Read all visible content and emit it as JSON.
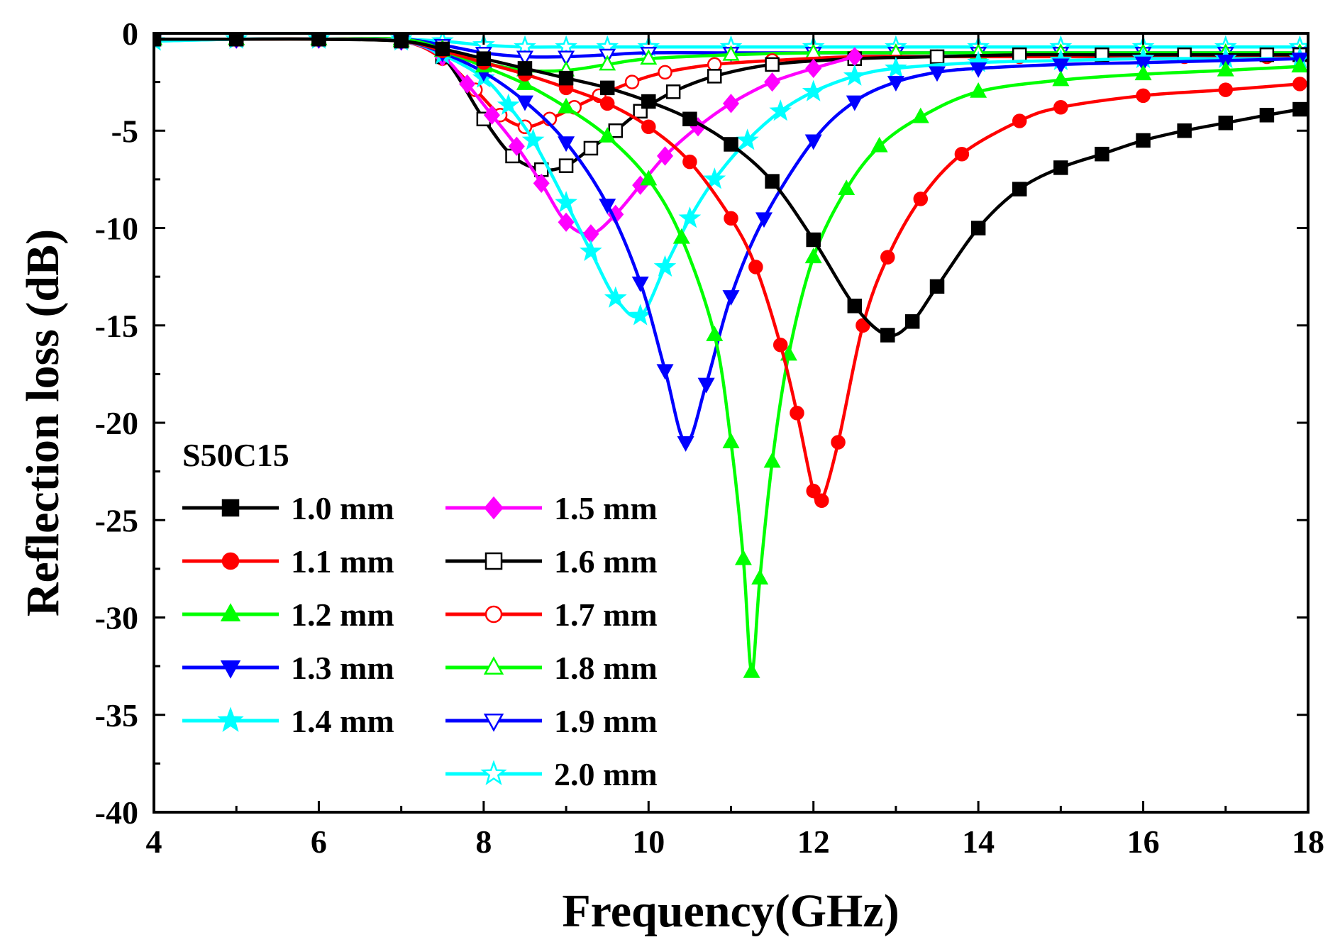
{
  "chart_data": {
    "type": "line",
    "title": "",
    "xlabel": "Frequency(GHz)",
    "ylabel": "Reflection loss (dB)",
    "xlim": [
      4,
      18
    ],
    "ylim": [
      -40,
      0
    ],
    "xticks": [
      4,
      6,
      8,
      10,
      12,
      14,
      16,
      18
    ],
    "yticks": [
      0,
      -5,
      -10,
      -15,
      -20,
      -25,
      -30,
      -35,
      -40
    ],
    "annotation": "S50C15",
    "grid": false,
    "legend_position": "bottom-left",
    "series": [
      {
        "name": "1.0 mm",
        "color": "#000000",
        "marker": "square",
        "filled": true,
        "x": [
          4,
          5,
          6,
          7,
          7.5,
          8,
          8.5,
          9,
          9.5,
          10,
          10.5,
          11,
          11.5,
          12,
          12.5,
          12.9,
          13.2,
          13.5,
          14,
          14.5,
          15,
          15.5,
          16,
          16.5,
          17,
          17.5,
          17.9
        ],
        "y": [
          -0.3,
          -0.3,
          -0.3,
          -0.4,
          -0.8,
          -1.3,
          -1.8,
          -2.3,
          -2.8,
          -3.5,
          -4.4,
          -5.7,
          -7.6,
          -10.6,
          -14.0,
          -15.5,
          -14.8,
          -13.0,
          -10.0,
          -8.0,
          -6.9,
          -6.2,
          -5.5,
          -5.0,
          -4.6,
          -4.2,
          -3.9
        ]
      },
      {
        "name": "1.1 mm",
        "color": "#ff0000",
        "marker": "circle",
        "filled": true,
        "x": [
          4,
          5,
          6,
          7,
          7.5,
          8,
          8.5,
          9,
          9.5,
          10,
          10.5,
          11,
          11.3,
          11.6,
          11.8,
          12.0,
          12.1,
          12.3,
          12.6,
          12.9,
          13.3,
          13.8,
          14.5,
          15,
          16,
          17,
          17.9
        ],
        "y": [
          -0.3,
          -0.3,
          -0.3,
          -0.4,
          -0.9,
          -1.5,
          -2.1,
          -2.8,
          -3.6,
          -4.8,
          -6.6,
          -9.5,
          -12.0,
          -16.0,
          -19.5,
          -23.5,
          -24.0,
          -21.0,
          -15.0,
          -11.5,
          -8.5,
          -6.2,
          -4.5,
          -3.8,
          -3.2,
          -2.9,
          -2.6
        ]
      },
      {
        "name": "1.2 mm",
        "color": "#00ff00",
        "marker": "triangle-up",
        "filled": true,
        "x": [
          4,
          5,
          6,
          7,
          7.5,
          8,
          8.5,
          9,
          9.5,
          10,
          10.4,
          10.8,
          11.0,
          11.15,
          11.25,
          11.35,
          11.5,
          11.7,
          12.0,
          12.4,
          12.8,
          13.3,
          14,
          15,
          16,
          17,
          17.9
        ],
        "y": [
          -0.3,
          -0.3,
          -0.3,
          -0.4,
          -0.9,
          -1.7,
          -2.6,
          -3.8,
          -5.3,
          -7.5,
          -10.5,
          -15.5,
          -21.0,
          -27.0,
          -32.8,
          -28.0,
          -22.0,
          -16.5,
          -11.5,
          -8.0,
          -5.8,
          -4.3,
          -3.0,
          -2.4,
          -2.1,
          -1.9,
          -1.7
        ]
      },
      {
        "name": "1.3 mm",
        "color": "#0000ff",
        "marker": "triangle-down",
        "filled": true,
        "x": [
          4,
          5,
          6,
          7,
          7.5,
          8,
          8.5,
          9,
          9.5,
          9.9,
          10.2,
          10.45,
          10.7,
          11.0,
          11.4,
          12,
          12.5,
          13,
          13.5,
          14,
          15,
          16,
          17,
          17.9
        ],
        "y": [
          -0.3,
          -0.3,
          -0.3,
          -0.4,
          -1.0,
          -2.0,
          -3.5,
          -5.6,
          -8.8,
          -12.8,
          -17.3,
          -21.0,
          -18.0,
          -13.5,
          -9.5,
          -5.5,
          -3.5,
          -2.5,
          -2.0,
          -1.8,
          -1.6,
          -1.5,
          -1.4,
          -1.3
        ]
      },
      {
        "name": "1.4 mm",
        "color": "#00ffff",
        "marker": "star",
        "filled": true,
        "x": [
          4,
          5,
          6,
          7,
          7.5,
          8,
          8.3,
          8.6,
          9.0,
          9.3,
          9.6,
          9.9,
          10.2,
          10.5,
          10.8,
          11.2,
          11.6,
          12.0,
          12.5,
          13,
          14,
          15,
          16,
          17,
          17.9
        ],
        "y": [
          -0.4,
          -0.3,
          -0.3,
          -0.4,
          -1.1,
          -2.3,
          -3.7,
          -5.5,
          -8.7,
          -11.2,
          -13.6,
          -14.5,
          -12.0,
          -9.5,
          -7.5,
          -5.5,
          -4.0,
          -3.0,
          -2.2,
          -1.8,
          -1.5,
          -1.4,
          -1.3,
          -1.3,
          -1.3
        ]
      },
      {
        "name": "1.5 mm",
        "color": "#ff00ff",
        "marker": "diamond",
        "filled": true,
        "x": [
          4,
          5,
          6,
          7,
          7.5,
          7.8,
          8.1,
          8.4,
          8.7,
          9.0,
          9.3,
          9.6,
          9.9,
          10.2,
          10.6,
          11.0,
          11.5,
          12.0,
          12.5
        ],
        "y": [
          -0.3,
          -0.3,
          -0.3,
          -0.4,
          -1.2,
          -2.6,
          -4.2,
          -5.8,
          -7.7,
          -9.7,
          -10.3,
          -9.3,
          -7.8,
          -6.3,
          -4.8,
          -3.6,
          -2.5,
          -1.8,
          -1.2
        ]
      },
      {
        "name": "1.6 mm",
        "color": "#000000",
        "marker": "square",
        "filled": false,
        "x": [
          4,
          5,
          6,
          7,
          7.5,
          8.0,
          8.35,
          8.7,
          9.0,
          9.3,
          9.6,
          9.9,
          10.3,
          10.8,
          11.5,
          12.5,
          13.5,
          14.5,
          15.5,
          16.5,
          17.5,
          17.9
        ],
        "y": [
          -0.3,
          -0.3,
          -0.3,
          -0.4,
          -1.2,
          -4.4,
          -6.3,
          -7.0,
          -6.8,
          -5.9,
          -5.0,
          -4.0,
          -3.0,
          -2.2,
          -1.6,
          -1.3,
          -1.2,
          -1.1,
          -1.1,
          -1.1,
          -1.1,
          -1.1
        ]
      },
      {
        "name": "1.7 mm",
        "color": "#ff0000",
        "marker": "circle",
        "filled": false,
        "x": [
          4,
          5,
          6,
          7,
          7.5,
          7.9,
          8.2,
          8.5,
          8.8,
          9.1,
          9.4,
          9.8,
          10.2,
          10.8,
          11.5,
          12.5,
          13.5,
          14.5,
          15.5,
          16.5,
          17.5,
          17.9
        ],
        "y": [
          -0.3,
          -0.3,
          -0.3,
          -0.4,
          -1.3,
          -2.9,
          -4.2,
          -4.8,
          -4.4,
          -3.8,
          -3.2,
          -2.5,
          -2.0,
          -1.6,
          -1.4,
          -1.2,
          -1.2,
          -1.2,
          -1.2,
          -1.2,
          -1.2,
          -1.2
        ]
      },
      {
        "name": "1.8 mm",
        "color": "#00ff00",
        "marker": "triangle-up",
        "filled": false,
        "x": [
          4,
          5,
          6,
          7,
          7.5,
          8,
          8.5,
          9,
          9.5,
          10,
          11,
          12,
          13,
          14,
          15,
          16,
          17,
          17.9
        ],
        "y": [
          -0.3,
          -0.3,
          -0.3,
          -0.3,
          -0.8,
          -1.5,
          -1.9,
          -1.9,
          -1.6,
          -1.3,
          -1.1,
          -1.0,
          -1.0,
          -1.0,
          -1.0,
          -1.0,
          -1.0,
          -1.0
        ]
      },
      {
        "name": "1.9 mm",
        "color": "#0000ff",
        "marker": "triangle-down",
        "filled": false,
        "x": [
          4,
          5,
          6,
          7,
          7.5,
          8,
          8.5,
          9,
          9.5,
          10,
          11,
          12,
          13,
          14,
          15,
          16,
          17,
          17.9
        ],
        "y": [
          -0.3,
          -0.3,
          -0.3,
          -0.3,
          -0.6,
          -1.0,
          -1.2,
          -1.2,
          -1.1,
          -1.0,
          -1.0,
          -1.0,
          -1.0,
          -1.0,
          -1.0,
          -1.0,
          -1.0,
          -1.0
        ]
      },
      {
        "name": "2.0 mm",
        "color": "#00ffff",
        "marker": "star",
        "filled": false,
        "x": [
          4,
          5,
          6,
          7,
          7.5,
          8,
          8.5,
          9,
          9.5,
          10,
          11,
          12,
          13,
          14,
          15,
          16,
          17,
          17.9
        ],
        "y": [
          -0.4,
          -0.3,
          -0.3,
          -0.3,
          -0.4,
          -0.6,
          -0.7,
          -0.7,
          -0.7,
          -0.7,
          -0.7,
          -0.7,
          -0.7,
          -0.7,
          -0.7,
          -0.7,
          -0.7,
          -0.7
        ]
      }
    ]
  }
}
